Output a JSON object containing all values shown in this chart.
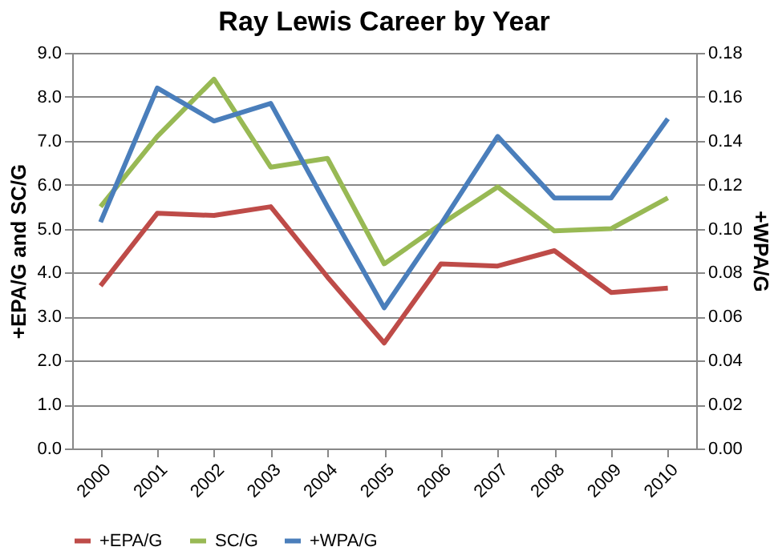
{
  "chart_data": {
    "type": "line",
    "title": "Ray Lewis Career by Year",
    "ylabel": "+EPA/G and SC/G",
    "y2label": "+WPA/G",
    "categories": [
      "2000",
      "2001",
      "2002",
      "2003",
      "2004",
      "2005",
      "2006",
      "2007",
      "2008",
      "2009",
      "2010"
    ],
    "series": [
      {
        "name": "+EPA/G",
        "color": "#be4b48",
        "values": [
          3.7,
          5.35,
          5.3,
          5.5,
          3.9,
          2.4,
          4.2,
          4.15,
          4.5,
          3.55,
          3.65
        ]
      },
      {
        "name": "SC/G",
        "color": "#98b954",
        "values": [
          5.5,
          7.1,
          8.4,
          6.4,
          6.6,
          4.2,
          5.1,
          5.95,
          4.95,
          5.0,
          5.7
        ]
      },
      {
        "name": "+WPA/G",
        "color": "#4a7ebb",
        "axis": "y2",
        "values": [
          0.103,
          0.164,
          0.149,
          0.157,
          0.11,
          0.064,
          0.102,
          0.142,
          0.114,
          0.114,
          0.15
        ]
      }
    ],
    "ylim": [
      0,
      9
    ],
    "yticks": [
      {
        "value": 0,
        "label": "0.0"
      },
      {
        "value": 1,
        "label": "1.0"
      },
      {
        "value": 2,
        "label": "2.0"
      },
      {
        "value": 3,
        "label": "3.0"
      },
      {
        "value": 4,
        "label": "4.0"
      },
      {
        "value": 5,
        "label": "5.0"
      },
      {
        "value": 6,
        "label": "6.0"
      },
      {
        "value": 7,
        "label": "7.0"
      },
      {
        "value": 8,
        "label": "8.0"
      },
      {
        "value": 9,
        "label": "9.0"
      }
    ],
    "y2lim": [
      0,
      0.18
    ],
    "y2ticks": [
      {
        "value": 0,
        "label": "0.00"
      },
      {
        "value": 0.02,
        "label": "0.02"
      },
      {
        "value": 0.04,
        "label": "0.04"
      },
      {
        "value": 0.06,
        "label": "0.06"
      },
      {
        "value": 0.08,
        "label": "0.08"
      },
      {
        "value": 0.1,
        "label": "0.10"
      },
      {
        "value": 0.12,
        "label": "0.12"
      },
      {
        "value": 0.14,
        "label": "0.14"
      },
      {
        "value": 0.16,
        "label": "0.16"
      },
      {
        "value": 0.18,
        "label": "0.18"
      }
    ],
    "grid": "y",
    "legend": "bottom",
    "marker": "none",
    "line_style": "solid"
  }
}
